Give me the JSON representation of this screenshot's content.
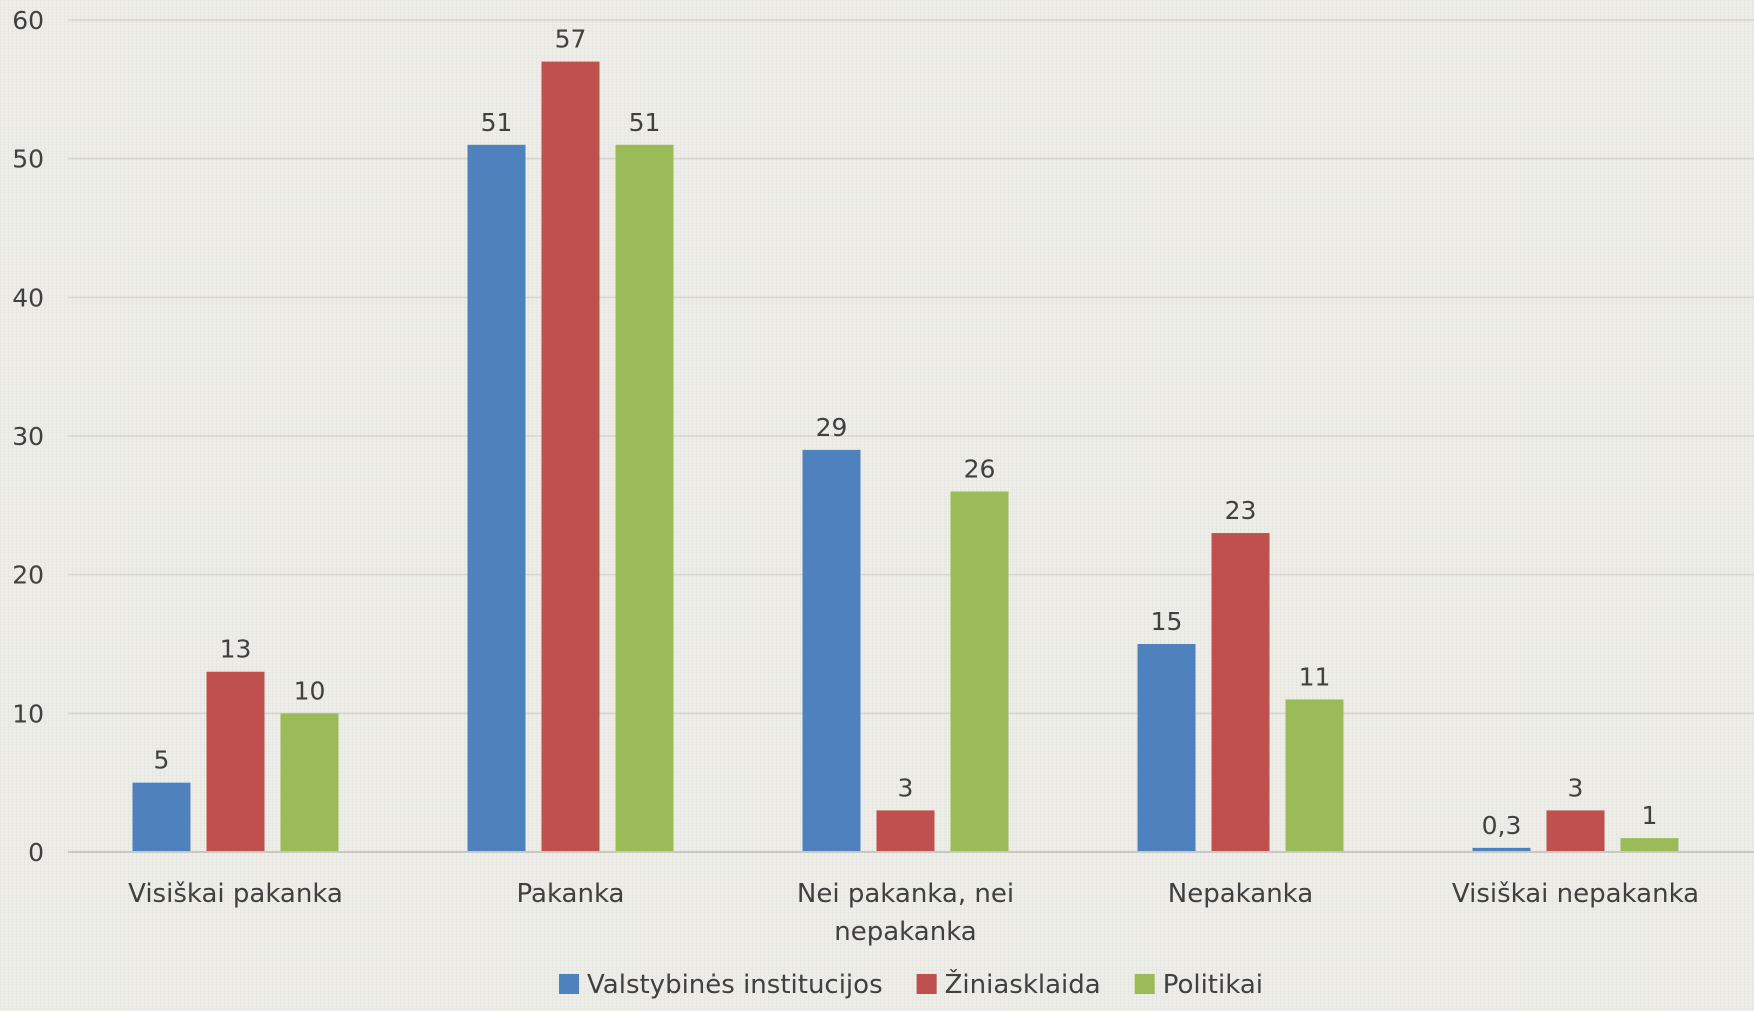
{
  "chart_data": {
    "type": "bar",
    "categories": [
      [
        "Visiškai pakanka"
      ],
      [
        "Pakanka"
      ],
      [
        "Nei pakanka, nei",
        "nepakanka"
      ],
      [
        "Nepakanka"
      ],
      [
        "Visiškai nepakanka"
      ]
    ],
    "series": [
      {
        "name": "Valstybinės institucijos",
        "color": "#4f81bd",
        "values": [
          5,
          51,
          29,
          15,
          0.3
        ],
        "labels": [
          "5",
          "51",
          "29",
          "15",
          "0,3"
        ]
      },
      {
        "name": "Žiniasklaida",
        "color": "#c0504d",
        "values": [
          13,
          57,
          3,
          23,
          3
        ],
        "labels": [
          "13",
          "57",
          "3",
          "23",
          "3"
        ]
      },
      {
        "name": "Politikai",
        "color": "#9bbb59",
        "values": [
          10,
          51,
          26,
          11,
          1
        ],
        "labels": [
          "10",
          "51",
          "26",
          "11",
          "1"
        ]
      }
    ],
    "ylim": [
      0,
      60
    ],
    "yticks": [
      0,
      10,
      20,
      30,
      40,
      50,
      60
    ],
    "grid": true,
    "legend_position": "bottom"
  }
}
